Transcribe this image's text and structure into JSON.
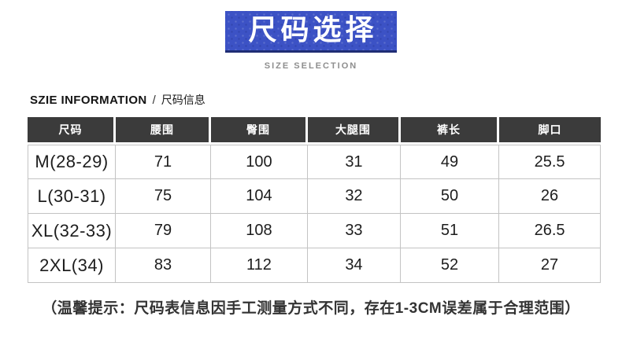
{
  "banner": {
    "bg_color": "#3c52c5",
    "underline_color": "#1f2d74"
  },
  "section": {
    "title_en": "SZIE INFORMATION",
    "separator": "/",
    "title_cn": "尺码信息"
  },
  "chart_data": {
    "type": "table",
    "title": "尺码选择",
    "subtitle": "SIZE SELECTION",
    "columns": [
      "尺码",
      "腰围",
      "臀围",
      "大腿围",
      "裤长",
      "脚口"
    ],
    "rows": [
      [
        "M(28-29)",
        "71",
        "100",
        "31",
        "49",
        "25.5"
      ],
      [
        "L(30-31)",
        "75",
        "104",
        "32",
        "50",
        "26"
      ],
      [
        "XL(32-33)",
        "79",
        "108",
        "33",
        "51",
        "26.5"
      ],
      [
        "2XL(34)",
        "83",
        "112",
        "34",
        "52",
        "27"
      ]
    ],
    "header_bg": "#3b3b3b",
    "grid_color": "#c3c3c3"
  },
  "note": "（温馨提示：尺码表信息因手工测量方式不同，存在1-3CM误差属于合理范围）"
}
